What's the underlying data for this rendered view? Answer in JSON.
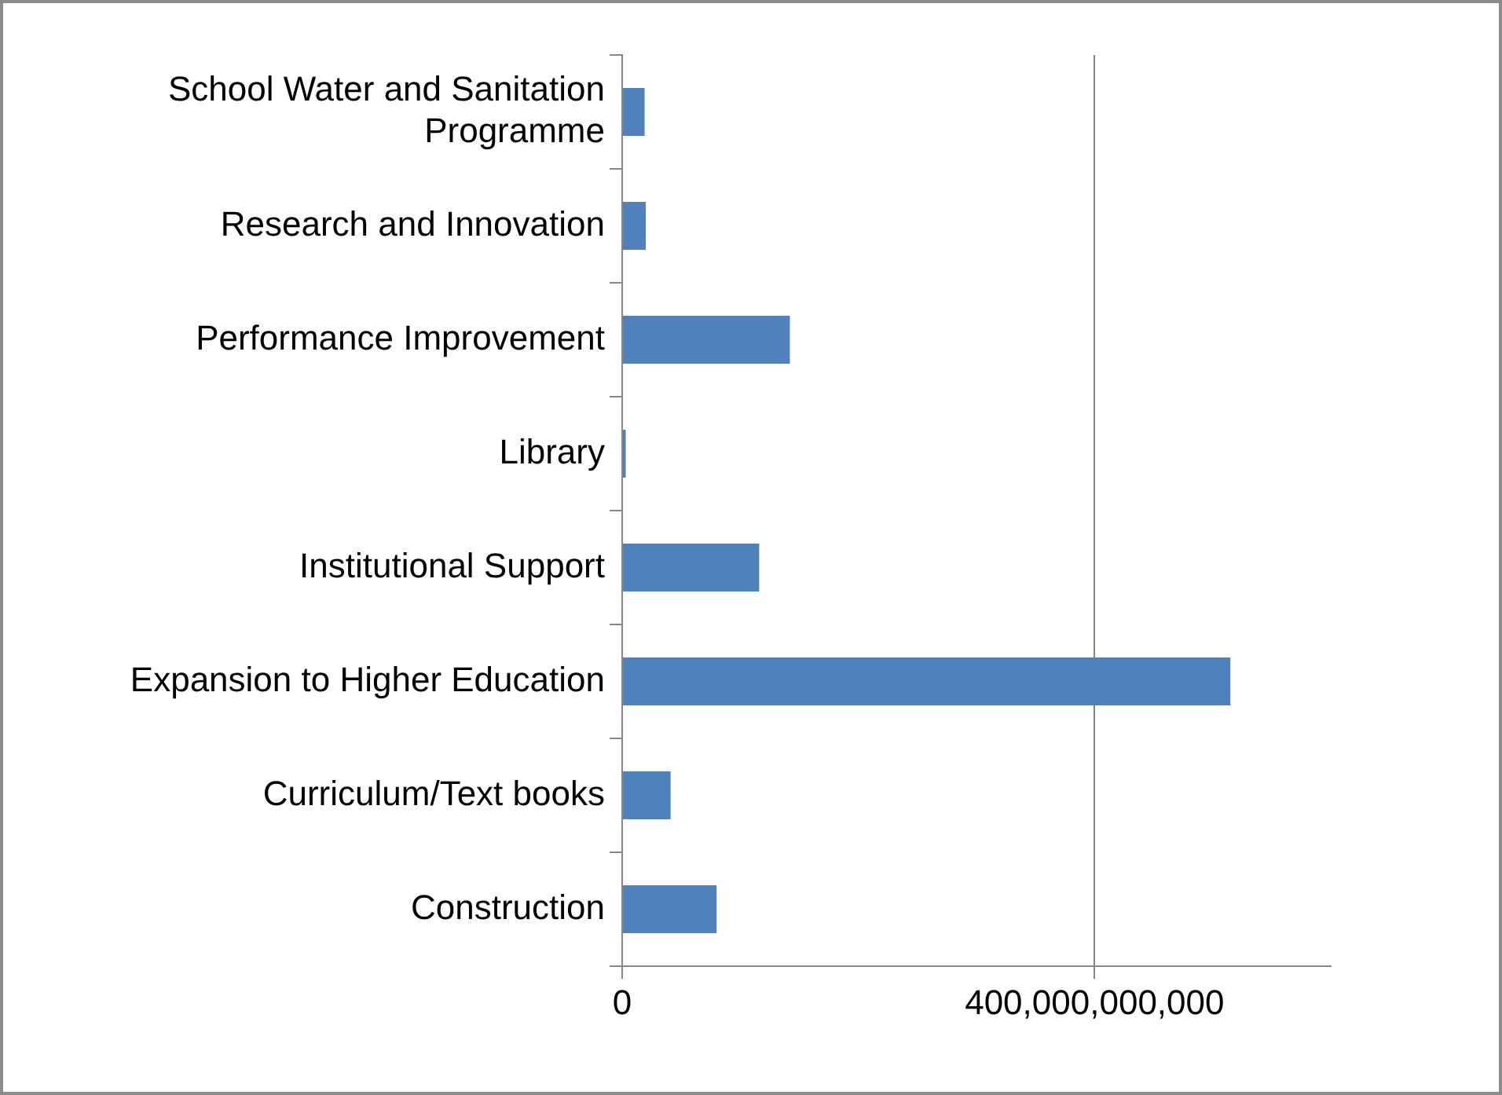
{
  "chart_data": {
    "type": "bar",
    "orientation": "horizontal",
    "categories": [
      "School Water and Sanitation Programme",
      "Research and Innovation",
      "Performance Improvement",
      "Library",
      "Institutional Support",
      "Expansion to Higher Education",
      "Curriculum/Text books",
      "Construction"
    ],
    "values": [
      19000000000,
      20000000000,
      142000000000,
      3000000000,
      116000000000,
      515000000000,
      41000000000,
      80000000000
    ],
    "color": "#4f81bd",
    "xlim": [
      0,
      600000000000
    ],
    "xticks": [
      0,
      {
        "value": 400000000000,
        "label": "400,000,000,000"
      }
    ],
    "grid": "x",
    "legend": false
  }
}
